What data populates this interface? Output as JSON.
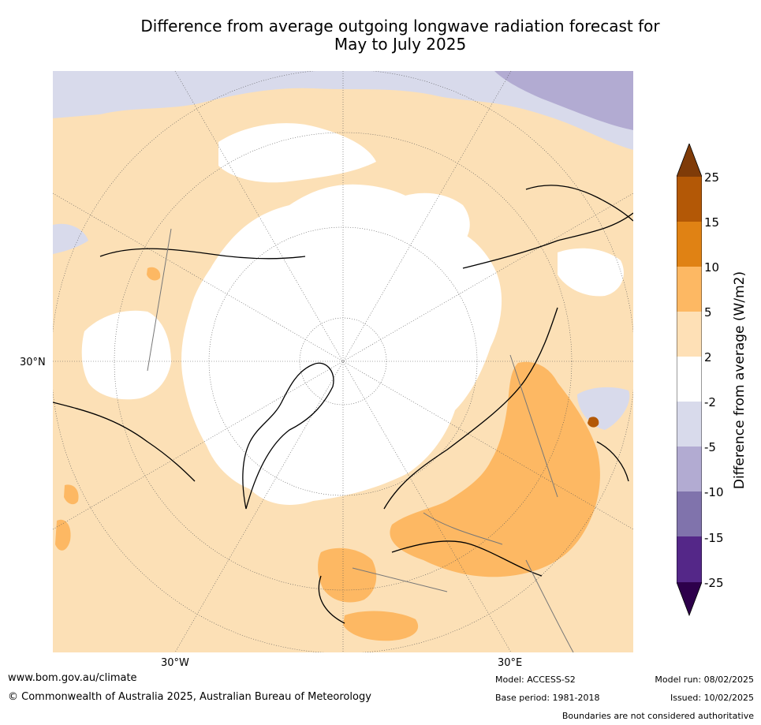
{
  "title_line1": "Difference from average outgoing longwave radiation forecast for",
  "title_line2": "May to July 2025",
  "labels": {
    "lat_30n": "30°N",
    "lon_30w": "30°W",
    "lon_30e": "30°E"
  },
  "colorbar": {
    "label": "Difference from average (W/m2)",
    "ticks": [
      "25",
      "15",
      "10",
      "5",
      "2",
      "-2",
      "-5",
      "-10",
      "-15",
      "-25"
    ],
    "colors": {
      "over": "#7f3b08",
      "c15_25": "#b35806",
      "c10_15": "#e08214",
      "c5_10": "#fdb863",
      "c2_5": "#fee0b6",
      "neutral": "#ffffff",
      "cm2_m5": "#d8daeb",
      "cm5_m10": "#b2abd2",
      "cm10_m15": "#8073ac",
      "cm15_m25": "#542788",
      "under": "#2d004b"
    }
  },
  "footer": {
    "website": "www.bom.gov.au/climate",
    "copyright": "© Commonwealth of Australia 2025, Australian Bureau of Meteorology",
    "model": "Model: ACCESS-S2",
    "base_period": "Base period: 1981-2018",
    "model_run": "Model run: 08/02/2025",
    "issued": "Issued: 10/02/2025",
    "disclaimer": "Boundaries are not considered authoritative"
  }
}
